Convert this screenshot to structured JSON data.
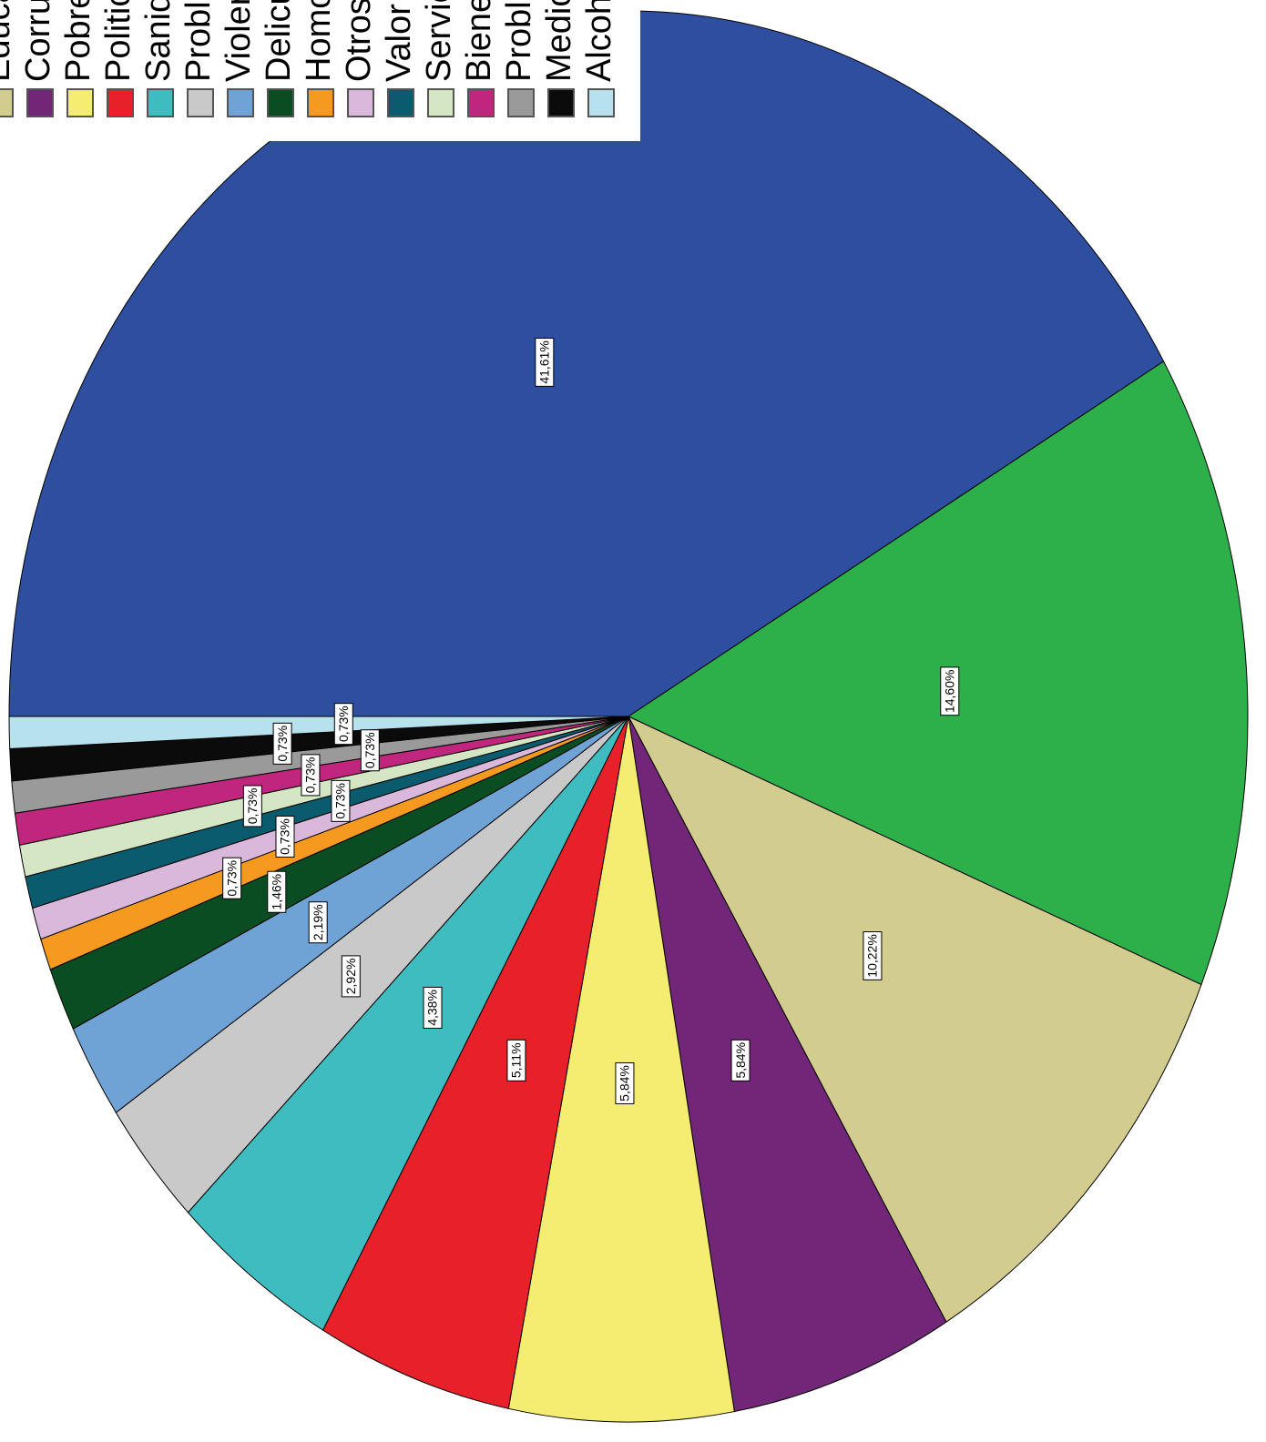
{
  "chart_data": {
    "type": "pie",
    "categories": [
      null,
      null,
      "Educa",
      "Corru",
      "Pobre",
      "Politic",
      "Sanid",
      "Proble",
      "Violer",
      "Delicu",
      "Homo",
      "Otros",
      "Valor",
      "Servic",
      "Biene",
      "Proble",
      "Medio",
      "Alcoh"
    ],
    "values": [
      41.61,
      14.6,
      10.22,
      5.84,
      5.84,
      5.11,
      4.38,
      2.92,
      2.19,
      1.46,
      0.73,
      0.73,
      0.73,
      0.73,
      0.73,
      0.73,
      0.73,
      0.73
    ],
    "value_labels": [
      "41,61%",
      "14,60%",
      "10,22%",
      "5,84%",
      "5,84%",
      "5,11%",
      "4,38%",
      "2,92%",
      "2,19%",
      "1,46%",
      "0,73%",
      "0,73%",
      "0,73%",
      "0,73%",
      "0,73%",
      "0,73%",
      "0,73%",
      "0,73%"
    ],
    "colors": [
      "#2e4fa0",
      "#2db04a",
      "#d3cc8f",
      "#722677",
      "#f5ec72",
      "#e8202a",
      "#3fbcc0",
      "#c9c9c9",
      "#6fa3d6",
      "#0b4d22",
      "#f59a1f",
      "#d9b8dc",
      "#0b5b6e",
      "#d4e6c3",
      "#c1267f",
      "#9a9a9a",
      "#0b0b0b",
      "#b7e1ec"
    ]
  }
}
